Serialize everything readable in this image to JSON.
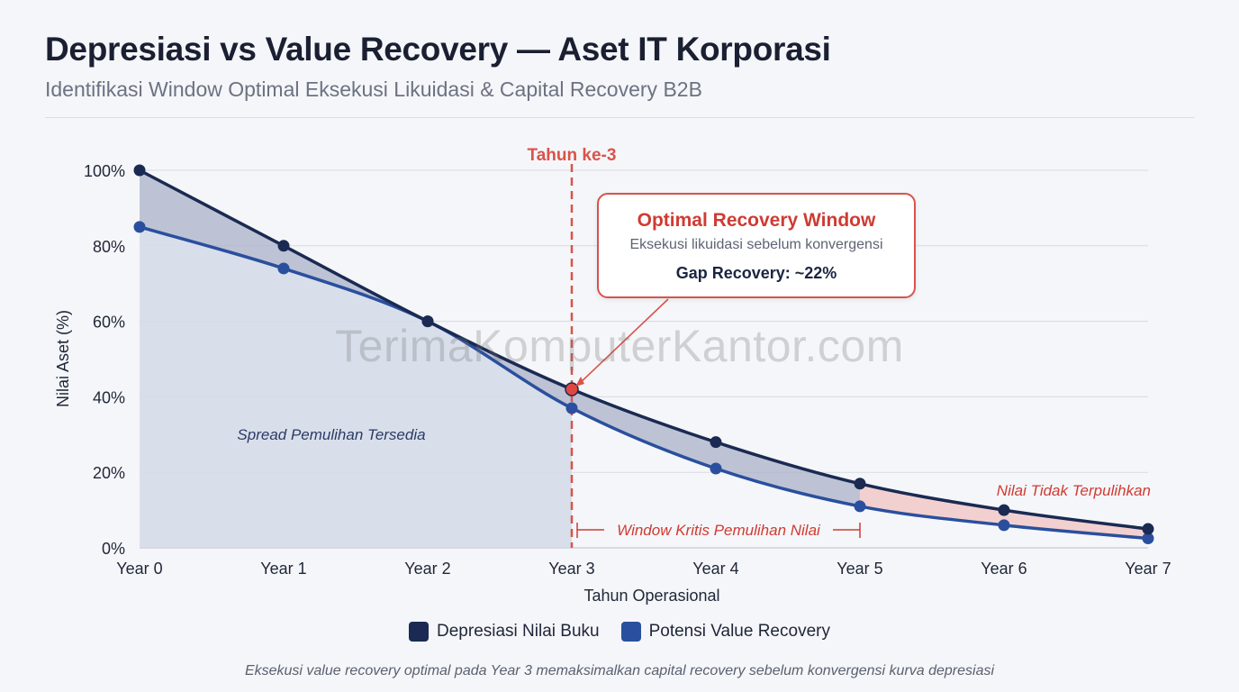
{
  "header": {
    "title": "Depresiasi vs Value Recovery — Aset IT Korporasi",
    "subtitle": "Identifikasi Window Optimal Eksekusi Likuidasi & Capital Recovery B2B"
  },
  "watermark": "TerimaKomputerKantor.com",
  "chart_data": {
    "type": "line",
    "x": [
      "Year 0",
      "Year 1",
      "Year 2",
      "Year 3",
      "Year 4",
      "Year 5",
      "Year 6",
      "Year 7"
    ],
    "series": [
      {
        "name": "Depresiasi Nilai Buku",
        "values": [
          100,
          80,
          60,
          42,
          28,
          17,
          10,
          5
        ],
        "color": "#1a2a52"
      },
      {
        "name": "Potensi Value Recovery",
        "values": [
          85,
          74,
          60,
          37,
          21,
          11,
          6,
          2.5
        ],
        "color": "#2a4f9e"
      }
    ],
    "xlabel": "Tahun Operasional",
    "ylabel": "Nilai Aset (%)",
    "ylim": [
      0,
      100
    ],
    "yticks": [
      "0%",
      "20%",
      "40%",
      "60%",
      "80%",
      "100%"
    ],
    "yticks_values": [
      0,
      20,
      40,
      60,
      80,
      100
    ],
    "grid": true,
    "legend_position": "bottom-center",
    "marker_line": {
      "x_index": 3,
      "label": "Tahun ke-3",
      "color": "#d9534a"
    },
    "annotations": {
      "spread": "Spread Pemulihan Tersedia",
      "window": "Window Kritis Pemulihan Nilai",
      "unrecoverable": "Nilai Tidak Terpulihkan"
    },
    "callout": {
      "title": "Optimal Recovery Window",
      "subtitle": "Eksekusi likuidasi sebelum konvergensi",
      "gap": "Gap Recovery: ~22%"
    }
  },
  "footnote": "Eksekusi value recovery optimal pada Year 3 memaksimalkan capital recovery sebelum konvergensi kurva depresiasi",
  "colors": {
    "accent": "#d9534a",
    "navy": "#1a2a52",
    "blue": "#2a4f9e"
  }
}
